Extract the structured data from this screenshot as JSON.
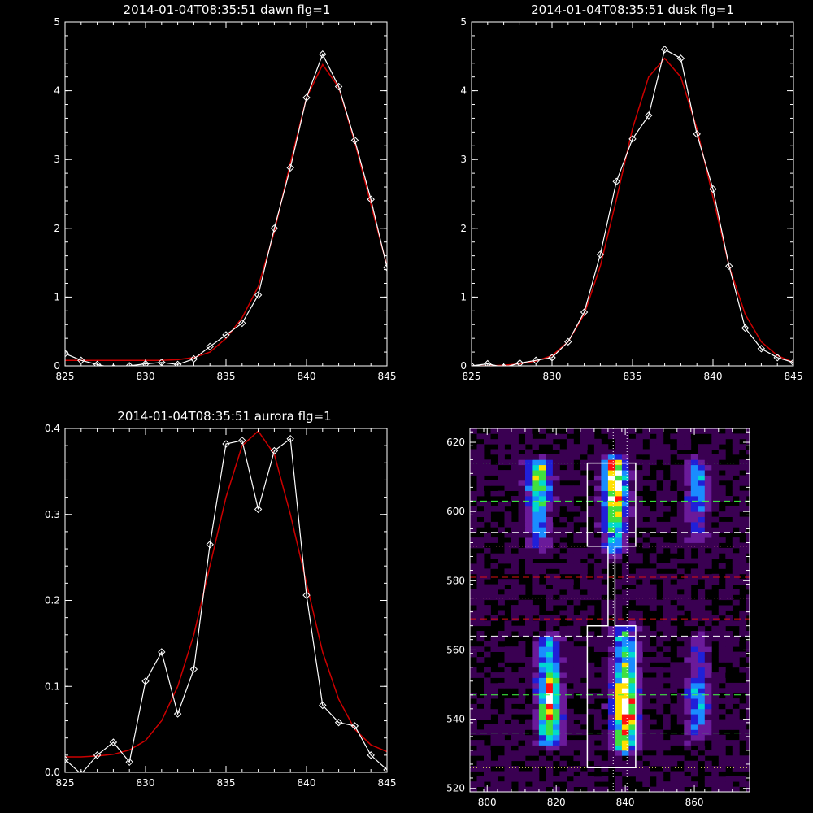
{
  "colors": {
    "background": "#000000",
    "data": "#ffffff",
    "fit": "#cc0000"
  },
  "chart_data": [
    {
      "type": "line",
      "title": "2014-01-04T08:35:51 dawn flg=1",
      "xlim": [
        825,
        845
      ],
      "ylim": [
        0,
        5
      ],
      "xticks": [
        "825",
        "830",
        "835",
        "840",
        "845"
      ],
      "yticks": [
        "0",
        "1",
        "2",
        "3",
        "4",
        "5"
      ],
      "series": [
        {
          "x": [
            825,
            826,
            827,
            828,
            829,
            830,
            831,
            832,
            833,
            834,
            835,
            836,
            837,
            838,
            839,
            840,
            841,
            842,
            843,
            844,
            845
          ],
          "y": [
            0.18,
            0.08,
            0.02,
            -0.03,
            0.0,
            0.03,
            0.05,
            0.02,
            0.1,
            0.28,
            0.45,
            0.62,
            1.03,
            2.0,
            2.88,
            3.9,
            4.53,
            4.06,
            3.28,
            2.42,
            1.43
          ],
          "marker": "diamond",
          "color": "#ffffff"
        },
        {
          "fit": "gaussian",
          "color": "#cc0000",
          "x": [
            825,
            826,
            827,
            828,
            829,
            830,
            831,
            832,
            833,
            834,
            835,
            836,
            837,
            838,
            839,
            840,
            841,
            842,
            843,
            844,
            845
          ],
          "y": [
            0.08,
            0.08,
            0.08,
            0.08,
            0.08,
            0.08,
            0.08,
            0.09,
            0.12,
            0.2,
            0.4,
            0.7,
            1.15,
            1.95,
            2.95,
            3.9,
            4.38,
            4.05,
            3.25,
            2.35,
            1.45
          ]
        }
      ]
    },
    {
      "type": "line",
      "title": "2014-01-04T08:35:51 dusk flg=1",
      "xlim": [
        825,
        845
      ],
      "ylim": [
        0,
        5
      ],
      "xticks": [
        "825",
        "830",
        "835",
        "840",
        "845"
      ],
      "yticks": [
        "0",
        "1",
        "2",
        "3",
        "4",
        "5"
      ],
      "series": [
        {
          "x": [
            825,
            826,
            827,
            828,
            829,
            830,
            831,
            832,
            833,
            834,
            835,
            836,
            837,
            838,
            839,
            840,
            841,
            842,
            843,
            844,
            845
          ],
          "y": [
            0.0,
            0.03,
            -0.02,
            0.04,
            0.08,
            0.12,
            0.35,
            0.78,
            1.62,
            2.68,
            3.3,
            3.64,
            4.6,
            4.47,
            3.37,
            2.57,
            1.45,
            0.55,
            0.25,
            0.12,
            0.05
          ],
          "marker": "diamond",
          "color": "#ffffff"
        },
        {
          "fit": "gaussian",
          "color": "#cc0000",
          "x": [
            825,
            826,
            827,
            828,
            829,
            830,
            831,
            832,
            833,
            834,
            835,
            836,
            837,
            838,
            839,
            840,
            841,
            842,
            843,
            844,
            845
          ],
          "y": [
            0.0,
            0.0,
            0.01,
            0.03,
            0.07,
            0.15,
            0.35,
            0.75,
            1.45,
            2.42,
            3.45,
            4.2,
            4.47,
            4.2,
            3.45,
            2.45,
            1.45,
            0.75,
            0.35,
            0.15,
            0.05
          ]
        }
      ]
    },
    {
      "type": "line",
      "title": "2014-01-04T08:35:51 aurora flg=1",
      "xlim": [
        825,
        845
      ],
      "ylim": [
        0,
        0.4
      ],
      "xticks": [
        "825",
        "830",
        "835",
        "840",
        "845"
      ],
      "yticks": [
        "0.0",
        "0.1",
        "0.2",
        "0.3",
        "0.4"
      ],
      "series": [
        {
          "x": [
            825,
            826,
            827,
            828,
            829,
            830,
            831,
            832,
            833,
            834,
            835,
            836,
            837,
            838,
            839,
            840,
            841,
            842,
            843,
            844,
            845
          ],
          "y": [
            0.015,
            -0.002,
            0.02,
            0.035,
            0.012,
            0.106,
            0.14,
            0.068,
            0.12,
            0.265,
            0.382,
            0.386,
            0.306,
            0.374,
            0.388,
            0.206,
            0.078,
            0.058,
            0.054,
            0.02,
            0.003
          ],
          "marker": "diamond",
          "color": "#ffffff"
        },
        {
          "fit": "gaussian",
          "color": "#cc0000",
          "x": [
            825,
            826,
            827,
            828,
            829,
            830,
            831,
            832,
            833,
            834,
            835,
            836,
            837,
            838,
            839,
            840,
            841,
            842,
            843,
            844,
            845
          ],
          "y": [
            0.018,
            0.018,
            0.019,
            0.021,
            0.026,
            0.037,
            0.06,
            0.1,
            0.16,
            0.24,
            0.32,
            0.38,
            0.397,
            0.37,
            0.3,
            0.22,
            0.14,
            0.085,
            0.05,
            0.032,
            0.024
          ]
        }
      ]
    },
    {
      "type": "heatmap",
      "xlim": [
        795,
        876
      ],
      "ylim": [
        519,
        624
      ],
      "xticks": [
        "800",
        "820",
        "840",
        "860"
      ],
      "yticks": [
        "520",
        "540",
        "560",
        "580",
        "600",
        "620"
      ],
      "colormap": [
        "#000000",
        "#3a0052",
        "#6a1a9a",
        "#2020d8",
        "#1a8cff",
        "#00d8d0",
        "#40e040",
        "#ffe000",
        "#ff1010",
        "#ffffff"
      ],
      "columns": [
        {
          "x": 818,
          "y_range": [
            532,
            563
          ],
          "peak_y": 543,
          "peak": 0.8
        },
        {
          "x": 815,
          "y_range": [
            589,
            614
          ],
          "peak_y": 608,
          "peak": 0.62
        },
        {
          "x": 840,
          "y_range": [
            530,
            566
          ],
          "peak_y": 542,
          "peak": 1.0
        },
        {
          "x": 837,
          "y_range": [
            588,
            615
          ],
          "peak_y": 606,
          "peak": 0.9
        },
        {
          "x": 861,
          "y_range": [
            533,
            563
          ],
          "peak_y": 545,
          "peak": 0.38
        },
        {
          "x": 861,
          "y_range": [
            590,
            614
          ],
          "peak_y": 608,
          "peak": 0.4
        }
      ],
      "hlines": [
        {
          "y": 614,
          "color": "#40ff40",
          "style": "dotted"
        },
        {
          "y": 603,
          "color": "#40ff40",
          "style": "dashed"
        },
        {
          "y": 594,
          "color": "#ffffff",
          "style": "dashed"
        },
        {
          "y": 590,
          "color": "#ff9090",
          "style": "dotted"
        },
        {
          "y": 581,
          "color": "#e01010",
          "style": "dashed"
        },
        {
          "y": 575,
          "color": "#ff9090",
          "style": "dotted"
        },
        {
          "y": 569,
          "color": "#e01010",
          "style": "dashed"
        },
        {
          "y": 564,
          "color": "#ffffff",
          "style": "dashed"
        },
        {
          "y": 547,
          "color": "#40ff40",
          "style": "dashed"
        },
        {
          "y": 536,
          "color": "#40ff40",
          "style": "dashed"
        },
        {
          "y": 526,
          "color": "#ffff60",
          "style": "dotted"
        }
      ],
      "vlines": [
        {
          "x": 836.5,
          "color": "#ffffff",
          "style": "dotted"
        },
        {
          "x": 840.5,
          "color": "#ffffff",
          "style": "dotted"
        }
      ],
      "outline": [
        [
          829,
          614
        ],
        [
          843,
          614
        ],
        [
          843,
          590
        ],
        [
          837,
          590
        ],
        [
          837,
          567
        ],
        [
          843,
          567
        ],
        [
          843,
          526
        ],
        [
          829,
          526
        ],
        [
          829,
          567
        ],
        [
          835,
          567
        ],
        [
          835,
          590
        ],
        [
          829,
          590
        ],
        [
          829,
          614
        ]
      ]
    }
  ]
}
